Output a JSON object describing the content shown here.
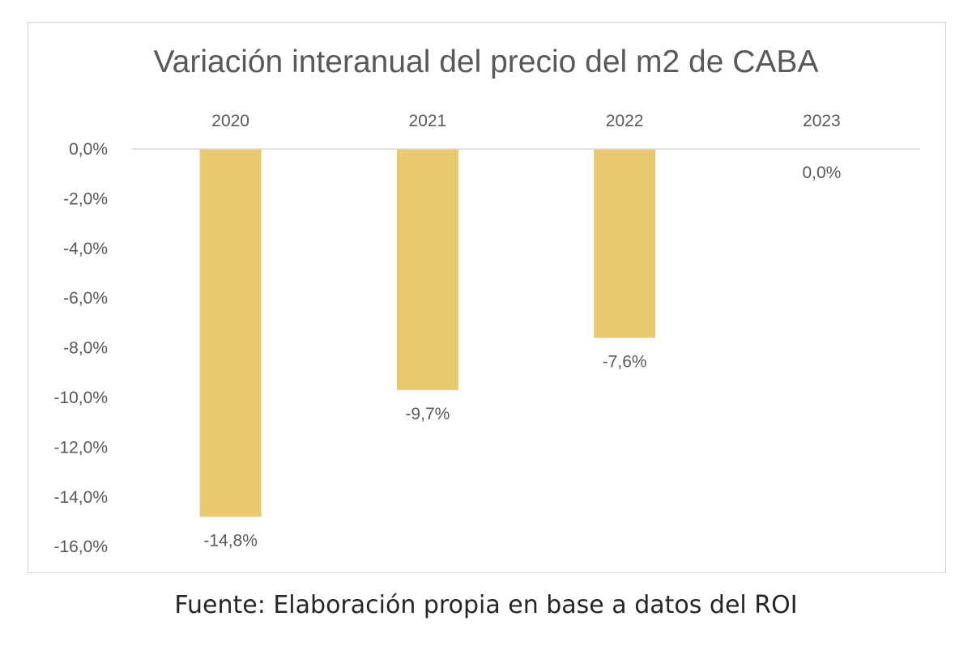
{
  "chart_data": {
    "type": "bar",
    "title": "Variación interanual del precio del m2  de CABA",
    "categories": [
      "2020",
      "2021",
      "2022",
      "2023"
    ],
    "values": [
      -14.8,
      -9.7,
      -7.6,
      0.0
    ],
    "data_labels": [
      "-14,8%",
      "-9,7%",
      "-7,6%",
      "0,0%"
    ],
    "ylim": [
      -16,
      0
    ],
    "yticks": [
      0,
      -2,
      -4,
      -6,
      -8,
      -10,
      -12,
      -14,
      -16
    ],
    "ytick_labels": [
      "0,0%",
      "-2,0%",
      "-4,0%",
      "-6,0%",
      "-8,0%",
      "-10,0%",
      "-12,0%",
      "-14,0%",
      "-16,0%"
    ],
    "xaxis_position": "top",
    "grid": false,
    "legend": "none",
    "bar_color": "#E8C96F",
    "axis_color": "#D9D9D9"
  },
  "footer": {
    "source": "Fuente: Elaboración propia en base a datos del ROI"
  }
}
